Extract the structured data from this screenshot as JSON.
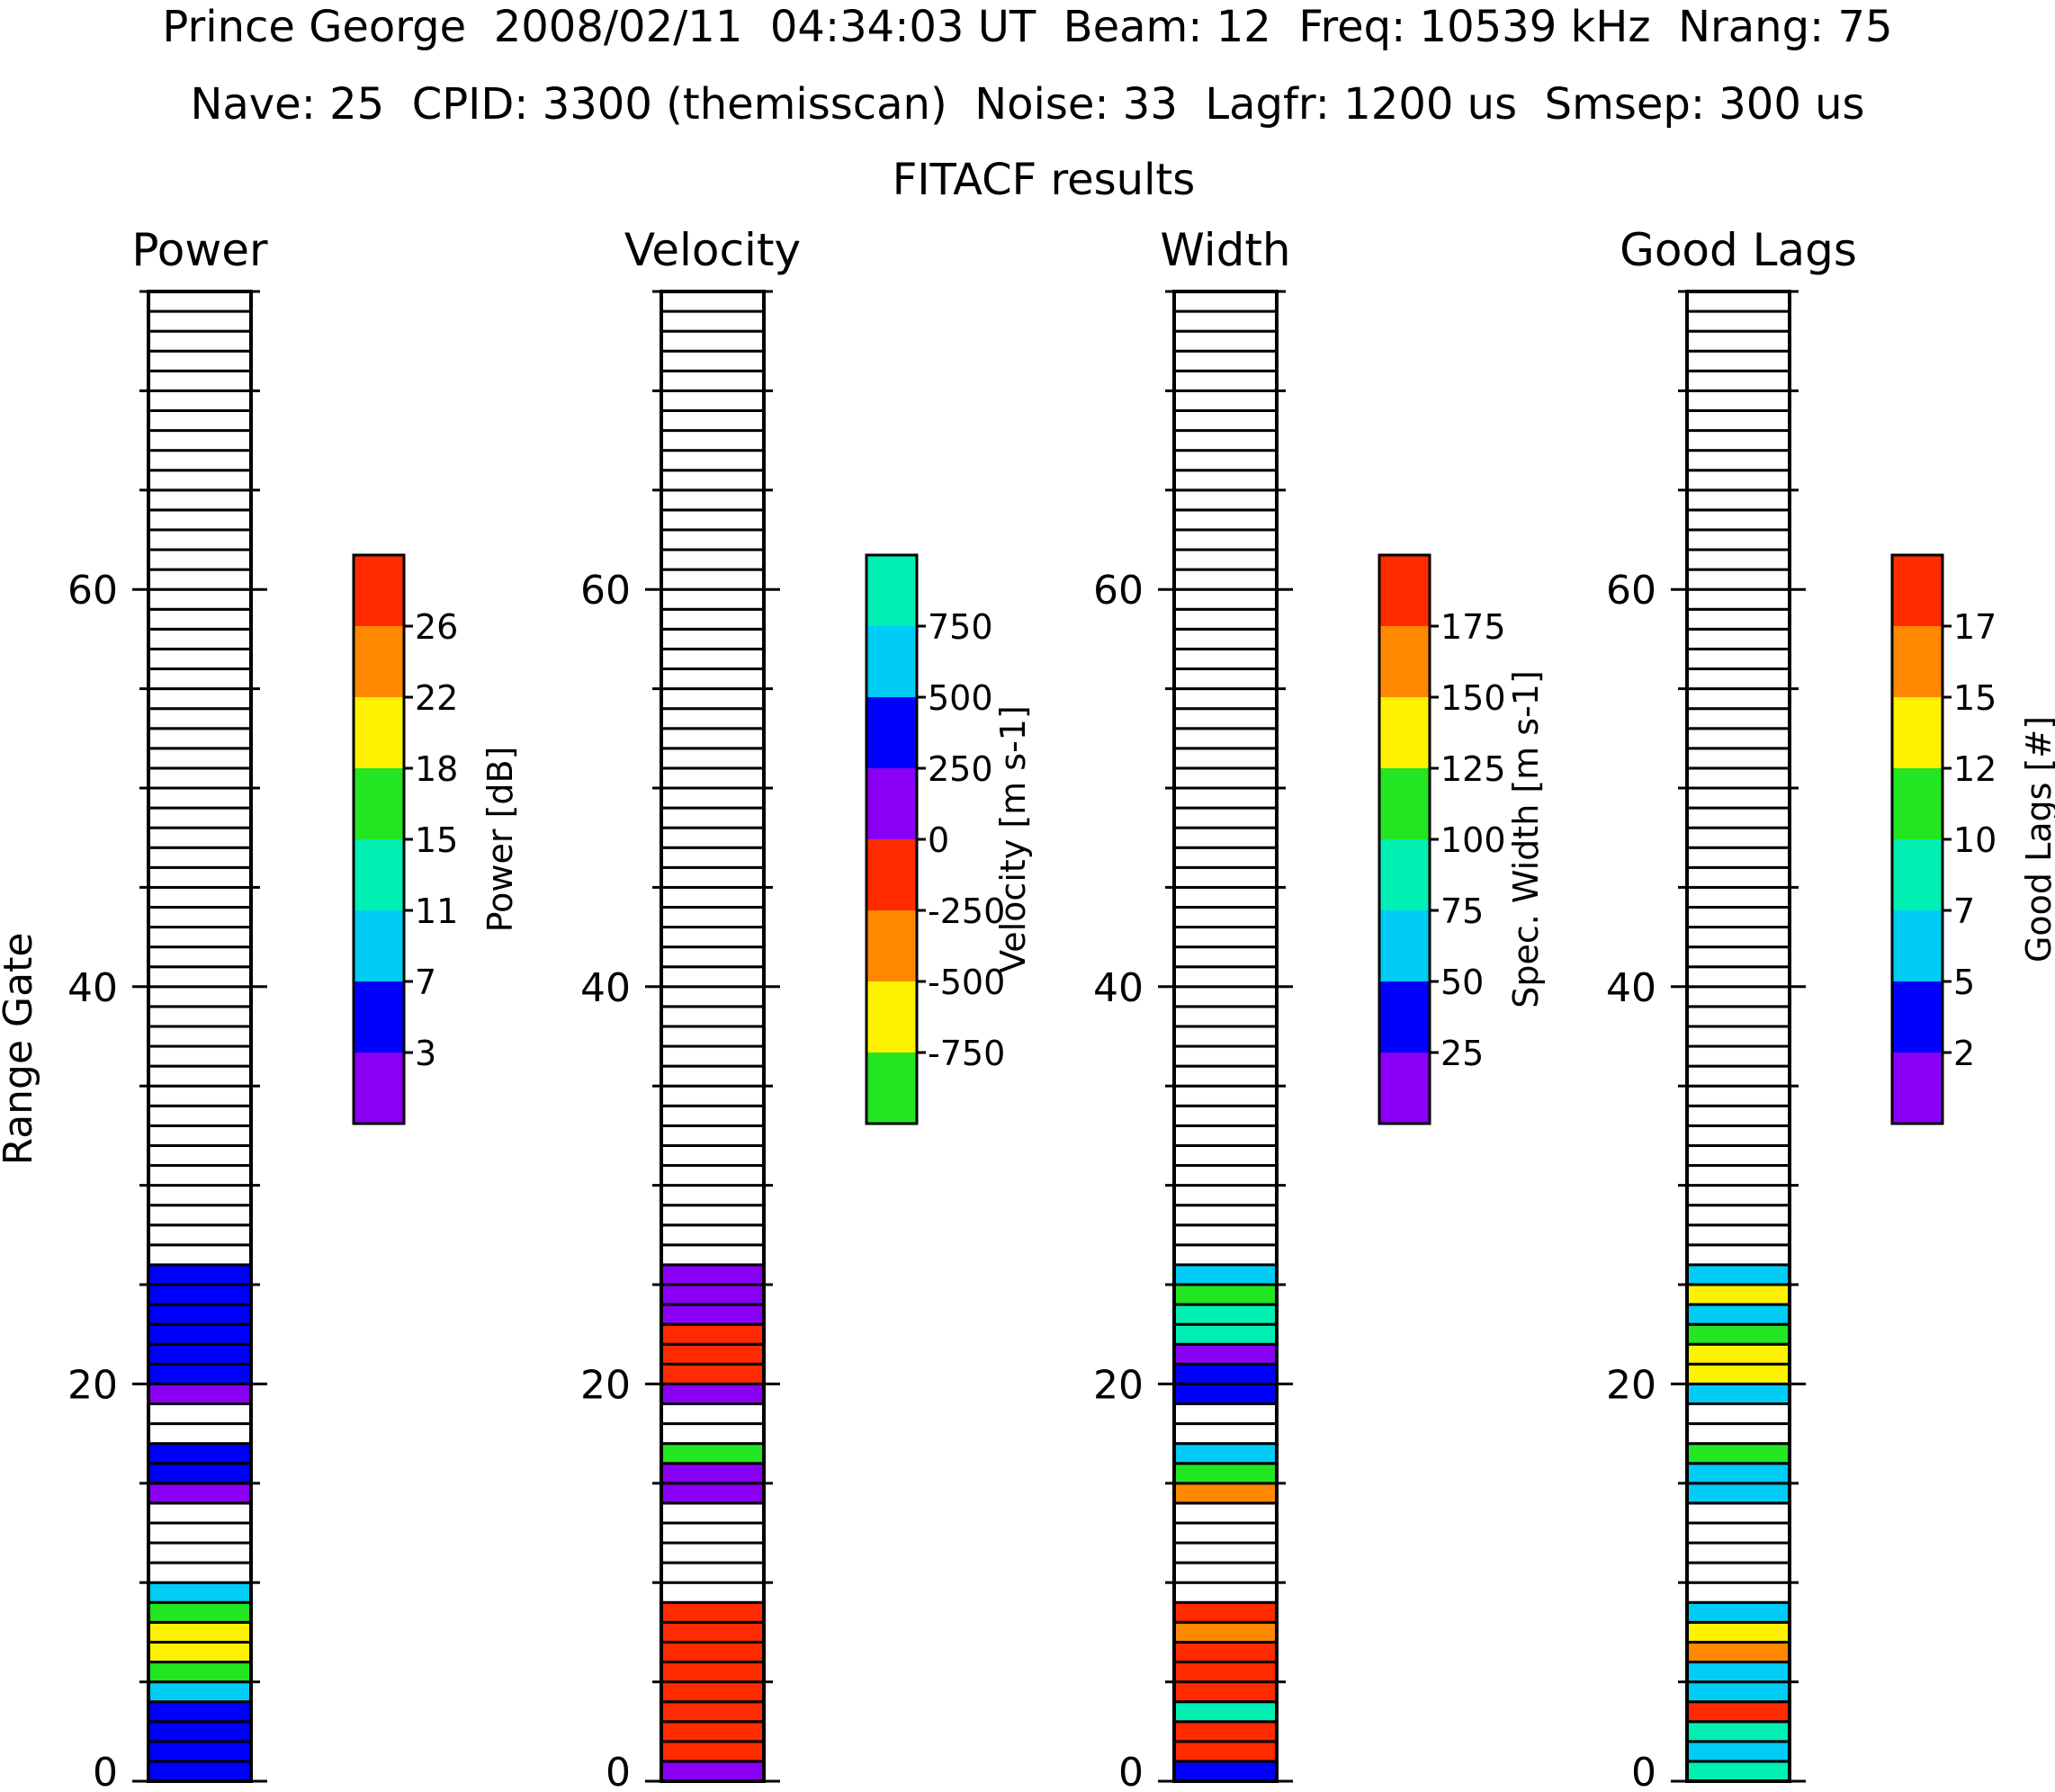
{
  "header": {
    "line1": "Prince George  2008/02/11  04:34:03 UT  Beam: 12  Freq: 10539 kHz  Nrang: 75",
    "line2": "Nave: 25  CPID: 3300 (themisscan)  Noise: 33  Lagfr: 1200 us  Smsep: 300 us",
    "line3": "FITACF results"
  },
  "chart_data": {
    "type": "heatmap",
    "ylabel": "Range Gate",
    "ylim": [
      0,
      75
    ],
    "yticks": [
      "0",
      "20",
      "40",
      "60"
    ],
    "nrang": 75,
    "panels": [
      {
        "title": "Power",
        "colorbar_label": "Power [dB]",
        "colorbar_ticks": [
          "26",
          "22",
          "18",
          "15",
          "11",
          "7",
          "3"
        ],
        "colors": [
          "#ff2a00",
          "#ff8800",
          "#fff200",
          "#22e622",
          "#00f0b4",
          "#00ccf5",
          "#0000ff",
          "#8a00f5"
        ],
        "gate_level": [
          6,
          6,
          6,
          6,
          5,
          3,
          2,
          2,
          3,
          5,
          null,
          null,
          null,
          null,
          7,
          6,
          6,
          null,
          null,
          7,
          6,
          6,
          6,
          6,
          6,
          6
        ]
      },
      {
        "title": "Velocity",
        "colorbar_label": "Velocity [m s-1]",
        "colorbar_ticks": [
          "750",
          "500",
          "250",
          "0",
          "-250",
          "-500",
          "-750"
        ],
        "colors": [
          "#00f0b4",
          "#00ccf5",
          "#0000ff",
          "#8a00f5",
          "#ff2a00",
          "#ff8800",
          "#fff200",
          "#22e622"
        ],
        "gate_level": [
          3,
          4,
          4,
          4,
          4,
          4,
          4,
          4,
          4,
          null,
          null,
          null,
          null,
          null,
          3,
          3,
          7,
          null,
          null,
          3,
          4,
          4,
          4,
          3,
          3,
          3
        ]
      },
      {
        "title": "Width",
        "colorbar_label": "Spec. Width [m s-1]",
        "colorbar_ticks": [
          "175",
          "150",
          "125",
          "100",
          "75",
          "50",
          "25"
        ],
        "colors": [
          "#ff2a00",
          "#ff8800",
          "#fff200",
          "#22e622",
          "#00f0b4",
          "#00ccf5",
          "#0000ff",
          "#8a00f5"
        ],
        "gate_level": [
          6,
          0,
          0,
          4,
          0,
          0,
          0,
          1,
          0,
          null,
          null,
          null,
          null,
          null,
          1,
          3,
          5,
          null,
          null,
          6,
          6,
          7,
          4,
          4,
          3,
          5
        ]
      },
      {
        "title": "Good Lags",
        "colorbar_label": "Good Lags [#]",
        "colorbar_ticks": [
          "17",
          "15",
          "12",
          "10",
          "7",
          "5",
          "2"
        ],
        "colors": [
          "#ff2a00",
          "#ff8800",
          "#fff200",
          "#22e622",
          "#00f0b4",
          "#00ccf5",
          "#0000ff",
          "#8a00f5"
        ],
        "gate_level": [
          4,
          5,
          4,
          0,
          5,
          5,
          1,
          2,
          5,
          null,
          null,
          null,
          null,
          null,
          5,
          5,
          3,
          null,
          null,
          5,
          2,
          2,
          3,
          5,
          2,
          5
        ]
      }
    ]
  }
}
